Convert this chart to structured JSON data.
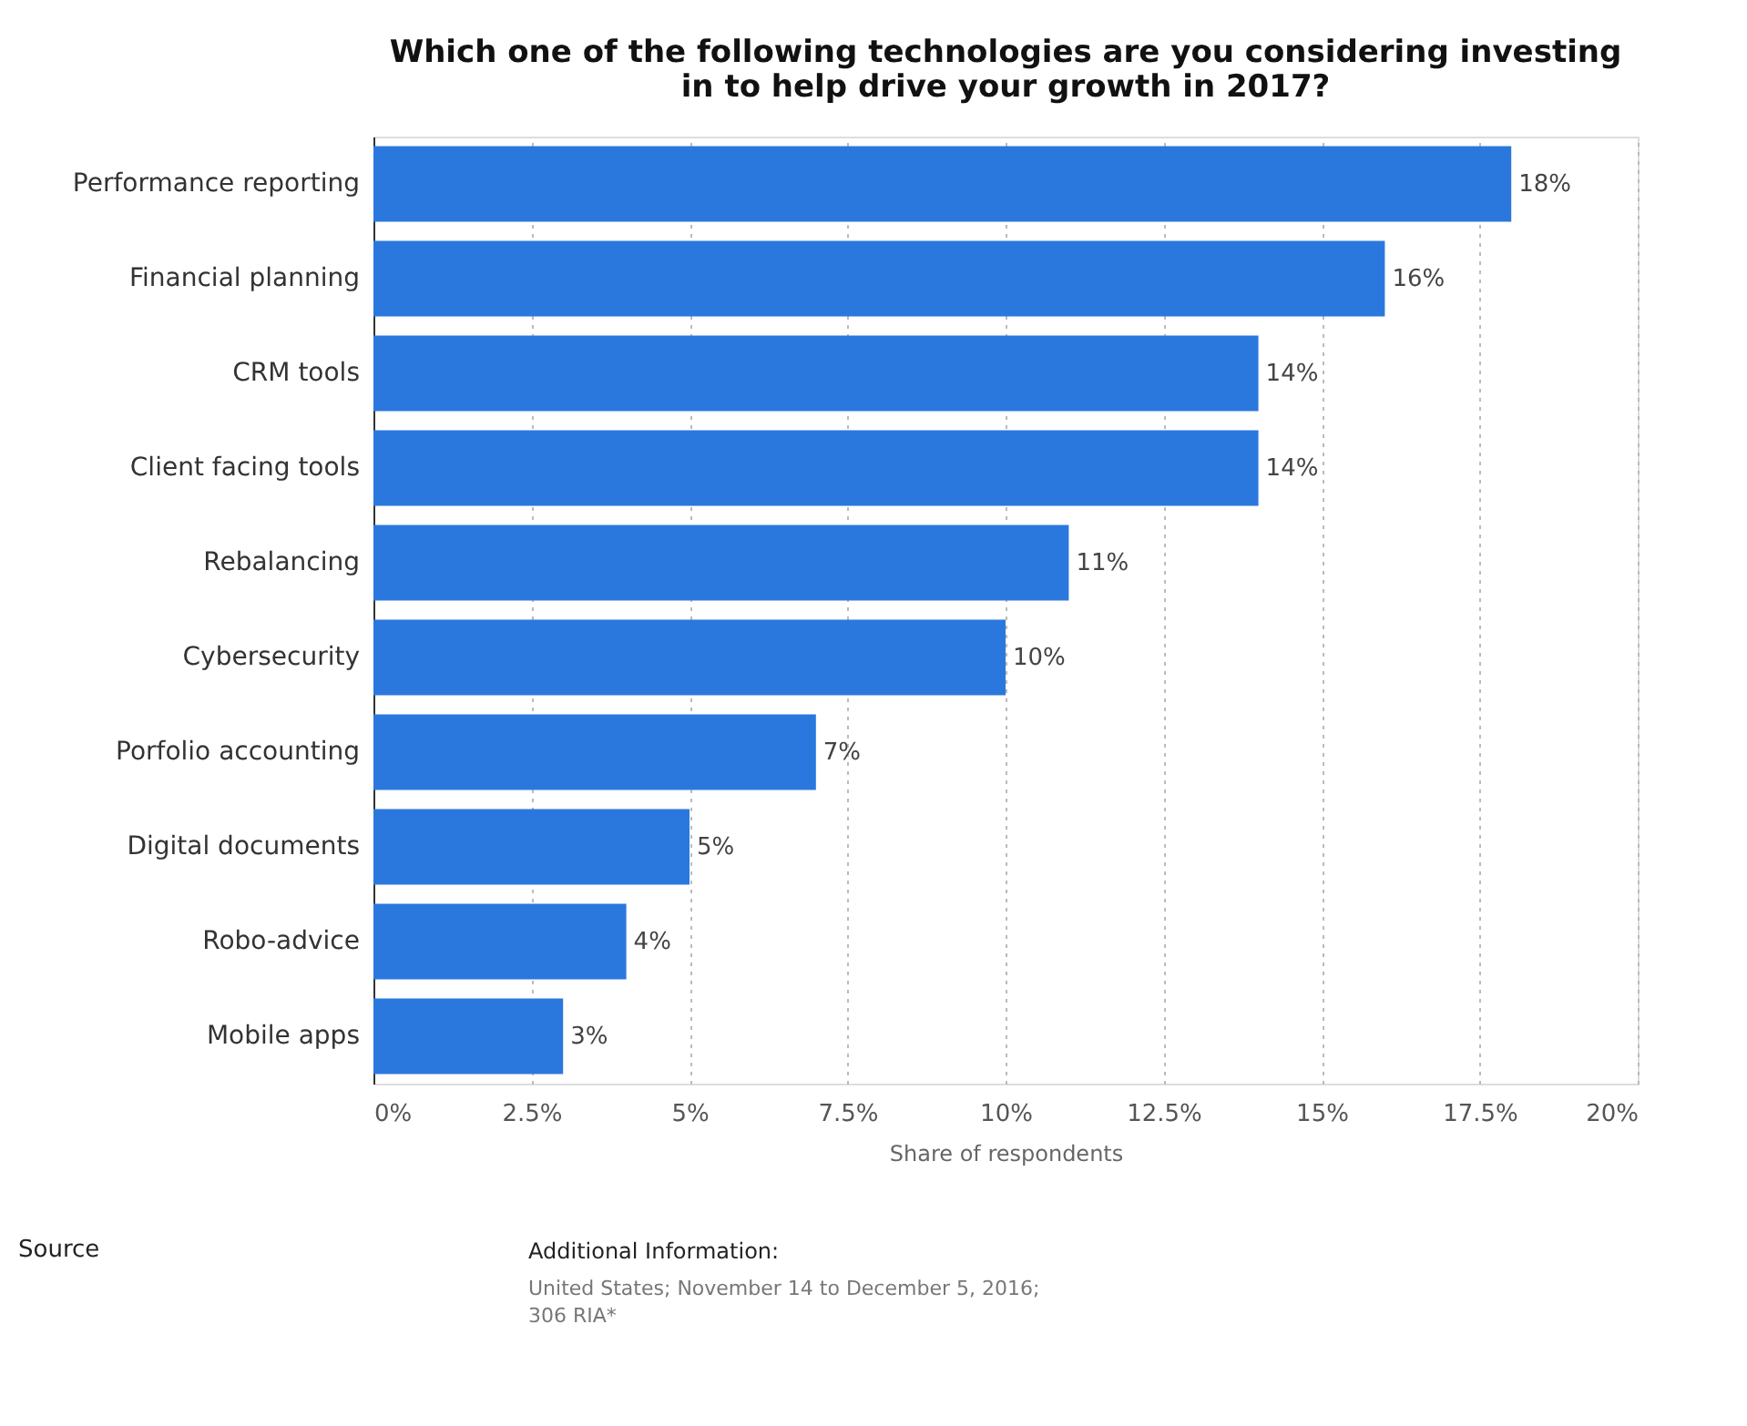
{
  "chart_data": {
    "type": "bar",
    "orientation": "horizontal",
    "title": "Which one of the following technologies are you considering investing\nin to help drive your growth in 2017?",
    "xlabel": "Share of respondents",
    "categories": [
      "Performance reporting",
      "Financial planning",
      "CRM tools",
      "Client facing tools",
      "Rebalancing",
      "Cybersecurity",
      "Porfolio accounting",
      "Digital documents",
      "Robo-advice",
      "Mobile apps"
    ],
    "values": [
      18,
      16,
      14,
      14,
      11,
      10,
      7,
      5,
      4,
      3
    ],
    "value_labels": [
      "18%",
      "16%",
      "14%",
      "14%",
      "11%",
      "10%",
      "7%",
      "5%",
      "4%",
      "3%"
    ],
    "color": "#2a78de",
    "xlim": [
      0,
      20
    ],
    "xticks": [
      {
        "value": 0,
        "label": "0%"
      },
      {
        "value": 2.5,
        "label": "2.5%"
      },
      {
        "value": 5,
        "label": "5%"
      },
      {
        "value": 7.5,
        "label": "7.5%"
      },
      {
        "value": 10,
        "label": "10%"
      },
      {
        "value": 12.5,
        "label": "12.5%"
      },
      {
        "value": 15,
        "label": "15%"
      },
      {
        "value": 17.5,
        "label": "17.5%"
      },
      {
        "value": 20,
        "label": "20%"
      }
    ],
    "grid": "x",
    "annotations": [
      "Source",
      "Additional Information:",
      "United States; November 14 to December 5, 2016;\n306 RIA*"
    ]
  }
}
